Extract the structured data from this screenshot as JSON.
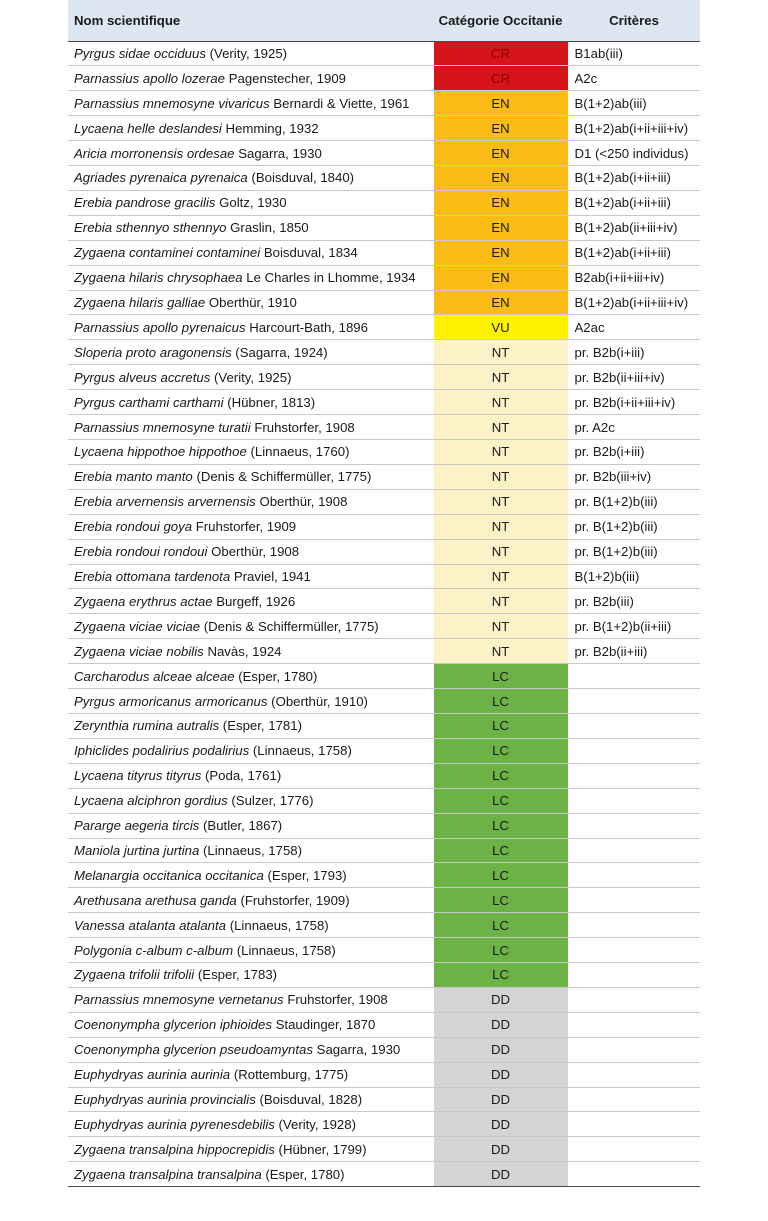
{
  "header": {
    "name_col": "Nom scientifique",
    "category_col": "Catégorie Occitanie",
    "criteria_col": "Critères"
  },
  "category_colors": {
    "CR": "#d7141c",
    "EN": "#fbbd15",
    "VU": "#fff200",
    "NT": "#fdf1c8",
    "LC": "#6cb244",
    "DD": "#d4d4d4"
  },
  "rows": [
    {
      "taxon": "Pyrgus sidae occiduus",
      "author": "(Verity, 1925)",
      "category": "CR",
      "criteria": "B1ab(iii)"
    },
    {
      "taxon": "Parnassius apollo lozerae",
      "author": "Pagenstecher, 1909",
      "category": "CR",
      "criteria": "A2c"
    },
    {
      "taxon": "Parnassius mnemosyne vivaricus",
      "author": "Bernardi & Viette, 1961",
      "category": "EN",
      "criteria": "B(1+2)ab(iii)"
    },
    {
      "taxon": "Lycaena helle deslandesi",
      "author": "Hemming, 1932",
      "category": "EN",
      "criteria": "B(1+2)ab(i+ii+iii+iv)"
    },
    {
      "taxon": "Aricia morronensis ordesae",
      "author": "Sagarra, 1930",
      "category": "EN",
      "criteria": "D1 (<250 individus)"
    },
    {
      "taxon": "Agriades pyrenaica pyrenaica",
      "author": "(Boisduval, 1840)",
      "category": "EN",
      "criteria": "B(1+2)ab(i+ii+iii)"
    },
    {
      "taxon": "Erebia pandrose gracilis",
      "author": "Goltz, 1930",
      "category": "EN",
      "criteria": "B(1+2)ab(i+ii+iii)"
    },
    {
      "taxon": "Erebia sthennyo sthennyo",
      "author": "Graslin, 1850",
      "category": "EN",
      "criteria": "B(1+2)ab(ii+iii+iv)"
    },
    {
      "taxon": "Zygaena contaminei contaminei",
      "author": "Boisduval, 1834",
      "category": "EN",
      "criteria": "B(1+2)ab(i+ii+iii)"
    },
    {
      "taxon": "Zygaena hilaris chrysophaea",
      "author": "Le Charles in Lhomme, 1934",
      "category": "EN",
      "criteria": "B2ab(i+ii+iii+iv)"
    },
    {
      "taxon": "Zygaena hilaris galliae",
      "author": "Oberthür, 1910",
      "category": "EN",
      "criteria": "B(1+2)ab(i+ii+iii+iv)"
    },
    {
      "taxon": "Parnassius apollo pyrenaicus",
      "author": "Harcourt-Bath, 1896",
      "category": "VU",
      "criteria": "A2ac"
    },
    {
      "taxon": "Sloperia proto aragonensis",
      "author": "(Sagarra, 1924)",
      "category": "NT",
      "criteria": "pr. B2b(i+iii)"
    },
    {
      "taxon": "Pyrgus alveus accretus",
      "author": "(Verity, 1925)",
      "category": "NT",
      "criteria": "pr. B2b(ii+iii+iv)"
    },
    {
      "taxon": "Pyrgus carthami carthami",
      "author": "(Hübner, 1813)",
      "category": "NT",
      "criteria": "pr. B2b(i+ii+iii+iv)"
    },
    {
      "taxon": "Parnassius mnemosyne turatii",
      "author": "Fruhstorfer, 1908",
      "category": "NT",
      "criteria": "pr. A2c"
    },
    {
      "taxon": "Lycaena hippothoe hippothoe",
      "author": "(Linnaeus, 1760)",
      "category": "NT",
      "criteria": "pr. B2b(i+iii)"
    },
    {
      "taxon": "Erebia manto manto",
      "author": "(Denis & Schiffermüller, 1775)",
      "category": "NT",
      "criteria": "pr. B2b(iii+iv)"
    },
    {
      "taxon": "Erebia arvernensis arvernensis",
      "author": "Oberthür, 1908",
      "category": "NT",
      "criteria": "pr. B(1+2)b(iii)"
    },
    {
      "taxon": "Erebia rondoui goya",
      "author": "Fruhstorfer, 1909",
      "category": "NT",
      "criteria": "pr. B(1+2)b(iii)"
    },
    {
      "taxon": "Erebia rondoui rondoui",
      "author": "Oberthür, 1908",
      "category": "NT",
      "criteria": "pr. B(1+2)b(iii)"
    },
    {
      "taxon": "Erebia ottomana tardenota",
      "author": "Praviel, 1941",
      "category": "NT",
      "criteria": "B(1+2)b(iii)"
    },
    {
      "taxon": "Zygaena erythrus actae",
      "author": "Burgeff, 1926",
      "category": "NT",
      "criteria": "pr. B2b(iii)"
    },
    {
      "taxon": "Zygaena viciae viciae",
      "author": "(Denis & Schiffermüller, 1775)",
      "category": "NT",
      "criteria": "pr. B(1+2)b(ii+iii)"
    },
    {
      "taxon": "Zygaena viciae nobilis",
      "author": "Navàs, 1924",
      "category": "NT",
      "criteria": "pr. B2b(ii+iii)"
    },
    {
      "taxon": "Carcharodus alceae alceae",
      "author": "(Esper, 1780)",
      "category": "LC",
      "criteria": ""
    },
    {
      "taxon": "Pyrgus armoricanus armoricanus",
      "author": "(Oberthür, 1910)",
      "category": "LC",
      "criteria": ""
    },
    {
      "taxon": "Zerynthia rumina autralis",
      "author": "(Esper, 1781)",
      "category": "LC",
      "criteria": ""
    },
    {
      "taxon": "Iphiclides podalirius podalirius",
      "author": "(Linnaeus, 1758)",
      "category": "LC",
      "criteria": ""
    },
    {
      "taxon": "Lycaena tityrus tityrus",
      "author": "(Poda, 1761)",
      "category": "LC",
      "criteria": ""
    },
    {
      "taxon": "Lycaena alciphron gordius",
      "author": "(Sulzer, 1776)",
      "category": "LC",
      "criteria": ""
    },
    {
      "taxon": "Pararge aegeria tircis",
      "author": "(Butler, 1867)",
      "category": "LC",
      "criteria": ""
    },
    {
      "taxon": "Maniola jurtina jurtina",
      "author": "(Linnaeus, 1758)",
      "category": "LC",
      "criteria": ""
    },
    {
      "taxon": "Melanargia occitanica occitanica",
      "author": "(Esper, 1793)",
      "category": "LC",
      "criteria": ""
    },
    {
      "taxon": "Arethusana arethusa ganda",
      "author": "(Fruhstorfer, 1909)",
      "category": "LC",
      "criteria": ""
    },
    {
      "taxon": "Vanessa atalanta atalanta",
      "author": "(Linnaeus, 1758)",
      "category": "LC",
      "criteria": ""
    },
    {
      "taxon": "Polygonia c-album c-album",
      "author": "(Linnaeus, 1758)",
      "category": "LC",
      "criteria": ""
    },
    {
      "taxon": "Zygaena trifolii trifolii",
      "author": "(Esper, 1783)",
      "category": "LC",
      "criteria": ""
    },
    {
      "taxon": "Parnassius mnemosyne vernetanus",
      "author": "Fruhstorfer, 1908",
      "category": "DD",
      "criteria": ""
    },
    {
      "taxon": "Coenonympha glycerion iphioides",
      "author": "Staudinger, 1870",
      "category": "DD",
      "criteria": ""
    },
    {
      "taxon": "Coenonympha glycerion pseudoamyntas",
      "author": "Sagarra, 1930",
      "category": "DD",
      "criteria": ""
    },
    {
      "taxon": "Euphydryas aurinia aurinia",
      "author": "(Rottemburg, 1775)",
      "category": "DD",
      "criteria": ""
    },
    {
      "taxon": "Euphydryas aurinia provincialis",
      "author": "(Boisduval, 1828)",
      "category": "DD",
      "criteria": ""
    },
    {
      "taxon": "Euphydryas aurinia pyrenesdebilis",
      "author": "(Verity, 1928)",
      "category": "DD",
      "criteria": ""
    },
    {
      "taxon": "Zygaena transalpina hippocrepidis",
      "author": "(Hübner, 1799)",
      "category": "DD",
      "criteria": ""
    },
    {
      "taxon": "Zygaena transalpina transalpina",
      "author": "(Esper, 1780)",
      "category": "DD",
      "criteria": ""
    }
  ]
}
